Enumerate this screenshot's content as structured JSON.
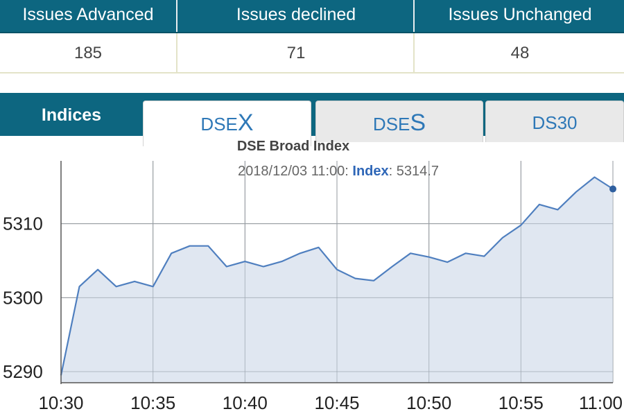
{
  "stats": {
    "headers": [
      "Issues Advanced",
      "Issues declined",
      "Issues Unchanged"
    ],
    "values": [
      "185",
      "71",
      "48"
    ]
  },
  "tabs": {
    "label": "Indices",
    "items": [
      {
        "prefix": "DSE",
        "suffix": "X",
        "active": true
      },
      {
        "prefix": "DSE",
        "suffix": "S",
        "active": false
      },
      {
        "prefix": "DS30",
        "suffix": "",
        "active": false
      }
    ]
  },
  "colors": {
    "header_bg": "#0d6680",
    "line": "#4f7fbf",
    "area_fill": "#dbe3ee",
    "tab_text": "#2e78b7"
  },
  "chart_data": {
    "type": "area",
    "title": "DSE Broad Index",
    "tooltip": {
      "date": "2018/12/03 11:00",
      "key": "Index",
      "value": "5314.7"
    },
    "x_ticks": [
      "10:30",
      "10:35",
      "10:40",
      "10:45",
      "10:50",
      "10:55",
      "11:00"
    ],
    "y_ticks": [
      5290,
      5300,
      5310
    ],
    "ylim": [
      5288.5,
      5318.5
    ],
    "xlim": [
      0,
      30
    ],
    "grid": true,
    "series": [
      {
        "x": [
          0,
          1,
          2,
          3,
          4,
          5,
          6,
          7,
          8,
          9,
          10,
          11,
          12,
          13,
          14,
          15,
          16,
          17,
          18,
          19,
          20,
          21,
          22,
          23,
          24,
          25,
          26,
          27,
          28,
          29,
          30
        ],
        "values": [
          5289.5,
          5301.5,
          5303.8,
          5301.5,
          5302.2,
          5301.5,
          5306.0,
          5307.0,
          5307.0,
          5304.2,
          5304.9,
          5304.2,
          5304.9,
          5306.0,
          5306.8,
          5303.8,
          5302.6,
          5302.3,
          5304.2,
          5306.0,
          5305.5,
          5304.8,
          5306.0,
          5305.6,
          5308.1,
          5309.8,
          5312.6,
          5311.9,
          5314.3,
          5316.3,
          5314.7
        ]
      }
    ]
  }
}
